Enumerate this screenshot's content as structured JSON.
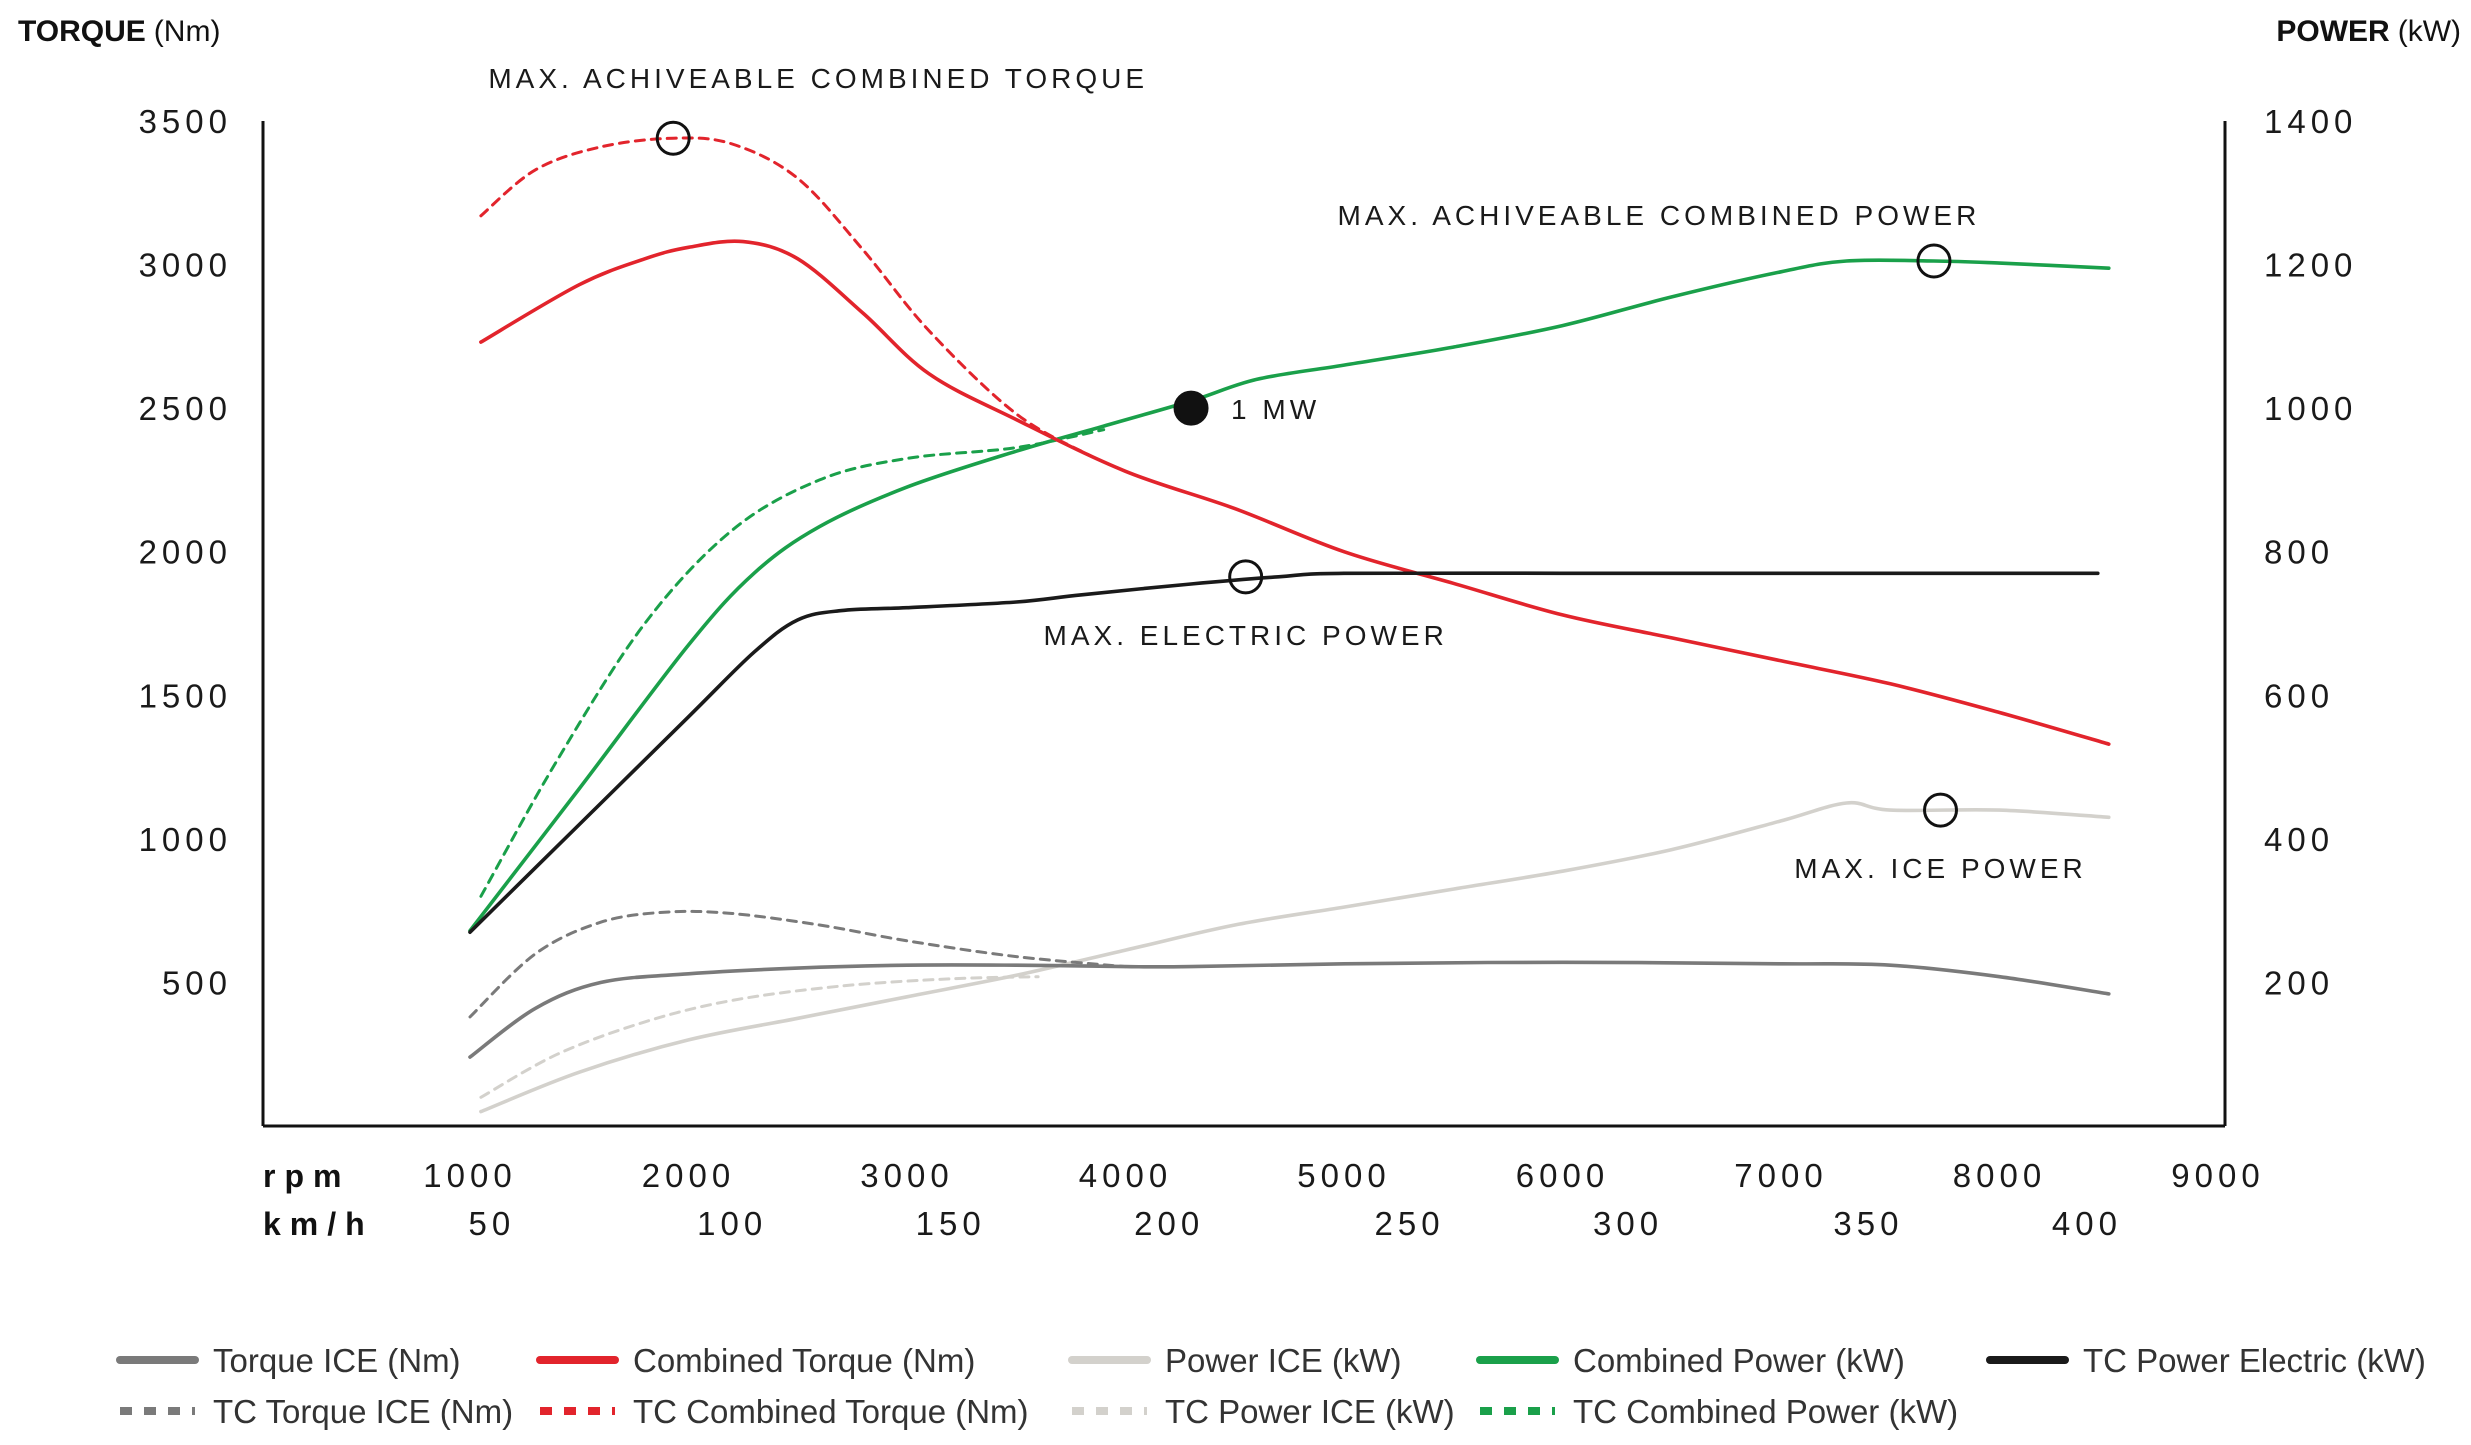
{
  "chart_data": {
    "type": "line",
    "y_left": {
      "title": "TORQUE",
      "unit": "(Nm)",
      "ticks": [
        500,
        1000,
        1500,
        2000,
        2500,
        3000,
        3500
      ],
      "ylim": [
        0,
        3500
      ]
    },
    "y_right": {
      "title": "POWER",
      "unit": "(kW)",
      "ticks": [
        200,
        400,
        600,
        800,
        1000,
        1200,
        1400
      ],
      "ylim": [
        0,
        1400
      ]
    },
    "x_axis": {
      "rpm_label": "rpm",
      "kmh_label": "km/h",
      "rpm_ticks": [
        1000,
        2000,
        3000,
        4000,
        5000,
        6000,
        7000,
        8000,
        9000
      ],
      "kmh_ticks": [
        {
          "rpm": 1100,
          "label": "50"
        },
        {
          "rpm": 2200,
          "label": "100"
        },
        {
          "rpm": 3200,
          "label": "150"
        },
        {
          "rpm": 4200,
          "label": "200"
        },
        {
          "rpm": 5300,
          "label": "250"
        },
        {
          "rpm": 6300,
          "label": "300"
        },
        {
          "rpm": 7400,
          "label": "350"
        },
        {
          "rpm": 8400,
          "label": "400"
        }
      ],
      "xlim": [
        0,
        9000
      ]
    },
    "series": [
      {
        "name": "Torque ICE (Nm)",
        "axis": "left",
        "color": "#7a7a7a",
        "dash": false,
        "x": [
          1000,
          1300,
          1600,
          2000,
          2500,
          3000,
          3500,
          4000,
          4300,
          5000,
          6000,
          7000,
          7500,
          8000,
          8500
        ],
        "y": [
          240,
          410,
          500,
          530,
          550,
          560,
          560,
          555,
          555,
          565,
          570,
          565,
          560,
          520,
          460
        ]
      },
      {
        "name": "TC Torque ICE (Nm)",
        "axis": "left",
        "color": "#7a7a7a",
        "dash": true,
        "x": [
          1000,
          1300,
          1600,
          1900,
          2200,
          2600,
          3000,
          3500,
          4000
        ],
        "y": [
          380,
          600,
          710,
          745,
          740,
          700,
          645,
          590,
          555
        ]
      },
      {
        "name": "Combined Torque (Nm)",
        "axis": "left",
        "color": "#e2242c",
        "dash": false,
        "x": [
          1050,
          1500,
          1800,
          2000,
          2250,
          2500,
          2800,
          3100,
          3500,
          4000,
          4500,
          5000,
          5500,
          6000,
          6500,
          7000,
          7500,
          8000,
          8500
        ],
        "y": [
          2730,
          2930,
          3020,
          3060,
          3080,
          3020,
          2830,
          2620,
          2460,
          2280,
          2150,
          2000,
          1890,
          1780,
          1700,
          1620,
          1540,
          1440,
          1330
        ]
      },
      {
        "name": "TC Combined Torque (Nm)",
        "axis": "left",
        "color": "#e2242c",
        "dash": true,
        "x": [
          1050,
          1300,
          1600,
          1930,
          2200,
          2500,
          2800,
          3100,
          3500,
          3850
        ],
        "y": [
          3170,
          3330,
          3410,
          3440,
          3420,
          3300,
          3050,
          2770,
          2480,
          2330
        ]
      },
      {
        "name": "Power ICE (kW)",
        "axis": "right",
        "color": "#d3d1cc",
        "dash": false,
        "x": [
          1050,
          1500,
          2000,
          2500,
          3000,
          3500,
          4000,
          4500,
          5000,
          5500,
          6000,
          6500,
          7000,
          7300,
          7500,
          8000,
          8500
        ],
        "y": [
          20,
          75,
          120,
          150,
          180,
          210,
          245,
          280,
          305,
          330,
          355,
          385,
          425,
          450,
          440,
          440,
          430
        ]
      },
      {
        "name": "TC Power ICE (kW)",
        "axis": "right",
        "color": "#d3d1cc",
        "dash": true,
        "x": [
          1050,
          1400,
          1800,
          2200,
          2700,
          3200,
          3600
        ],
        "y": [
          40,
          100,
          145,
          175,
          195,
          205,
          208
        ]
      },
      {
        "name": "Combined Power (kW)",
        "axis": "right",
        "color": "#1aa04a",
        "dash": false,
        "x": [
          1000,
          1500,
          2000,
          2300,
          2600,
          3000,
          3500,
          3900,
          4300,
          4600,
          5000,
          5500,
          6000,
          6500,
          7000,
          7300,
          7700,
          8000,
          8500
        ],
        "y": [
          272,
          470,
          670,
          770,
          835,
          890,
          940,
          975,
          1010,
          1040,
          1060,
          1085,
          1115,
          1155,
          1190,
          1205,
          1205,
          1202,
          1195
        ]
      },
      {
        "name": "TC Combined Power (kW)",
        "axis": "right",
        "color": "#1aa04a",
        "dash": true,
        "x": [
          1050,
          1400,
          1800,
          2200,
          2600,
          3000,
          3500,
          3900
        ],
        "y": [
          320,
          510,
          700,
          830,
          900,
          930,
          945,
          970
        ]
      },
      {
        "name": "TC Power Electric (kW)",
        "axis": "right",
        "color": "#1a1a1a",
        "dash": false,
        "x": [
          1000,
          1500,
          2000,
          2300,
          2500,
          2700,
          3000,
          3500,
          3800,
          4300,
          4700,
          5000,
          6000,
          7000,
          8000,
          8450
        ],
        "y": [
          270,
          420,
          570,
          660,
          705,
          718,
          722,
          730,
          740,
          755,
          765,
          770,
          770,
          770,
          770,
          770
        ]
      }
    ],
    "markers": [
      {
        "label": "MAX. ACHIVEABLE COMBINED TORQUE",
        "axis": "left",
        "x": 1930,
        "y": 3440,
        "filled": false,
        "label_pos": "above"
      },
      {
        "label": "MAX. ACHIVEABLE COMBINED POWER",
        "axis": "right",
        "x": 7700,
        "y": 1205,
        "filled": false,
        "label_pos": "above-left"
      },
      {
        "label": "1 MW",
        "axis": "right",
        "x": 4300,
        "y": 1000,
        "filled": true,
        "label_pos": "right"
      },
      {
        "label": "MAX. ELECTRIC POWER",
        "axis": "right",
        "x": 4550,
        "y": 765,
        "filled": false,
        "label_pos": "below"
      },
      {
        "label": "MAX. ICE POWER",
        "axis": "right",
        "x": 7730,
        "y": 440,
        "filled": false,
        "label_pos": "below"
      }
    ],
    "legend": [
      {
        "label": "Torque ICE (Nm)",
        "color": "#7a7a7a",
        "dash": false
      },
      {
        "label": "Combined Torque (Nm)",
        "color": "#e2242c",
        "dash": false
      },
      {
        "label": "Power ICE (kW)",
        "color": "#d3d1cc",
        "dash": false
      },
      {
        "label": "Combined Power (kW)",
        "color": "#1aa04a",
        "dash": false
      },
      {
        "label": "TC Power Electric (kW)",
        "color": "#1a1a1a",
        "dash": false
      },
      {
        "label": "TC Torque ICE (Nm)",
        "color": "#7a7a7a",
        "dash": true
      },
      {
        "label": "TC Combined Torque (Nm)",
        "color": "#e2242c",
        "dash": true
      },
      {
        "label": "TC Power ICE (kW)",
        "color": "#d3d1cc",
        "dash": true
      },
      {
        "label": "TC Combined Power (kW)",
        "color": "#1aa04a",
        "dash": true
      }
    ],
    "legend_placement": "bottom",
    "grid": false
  }
}
